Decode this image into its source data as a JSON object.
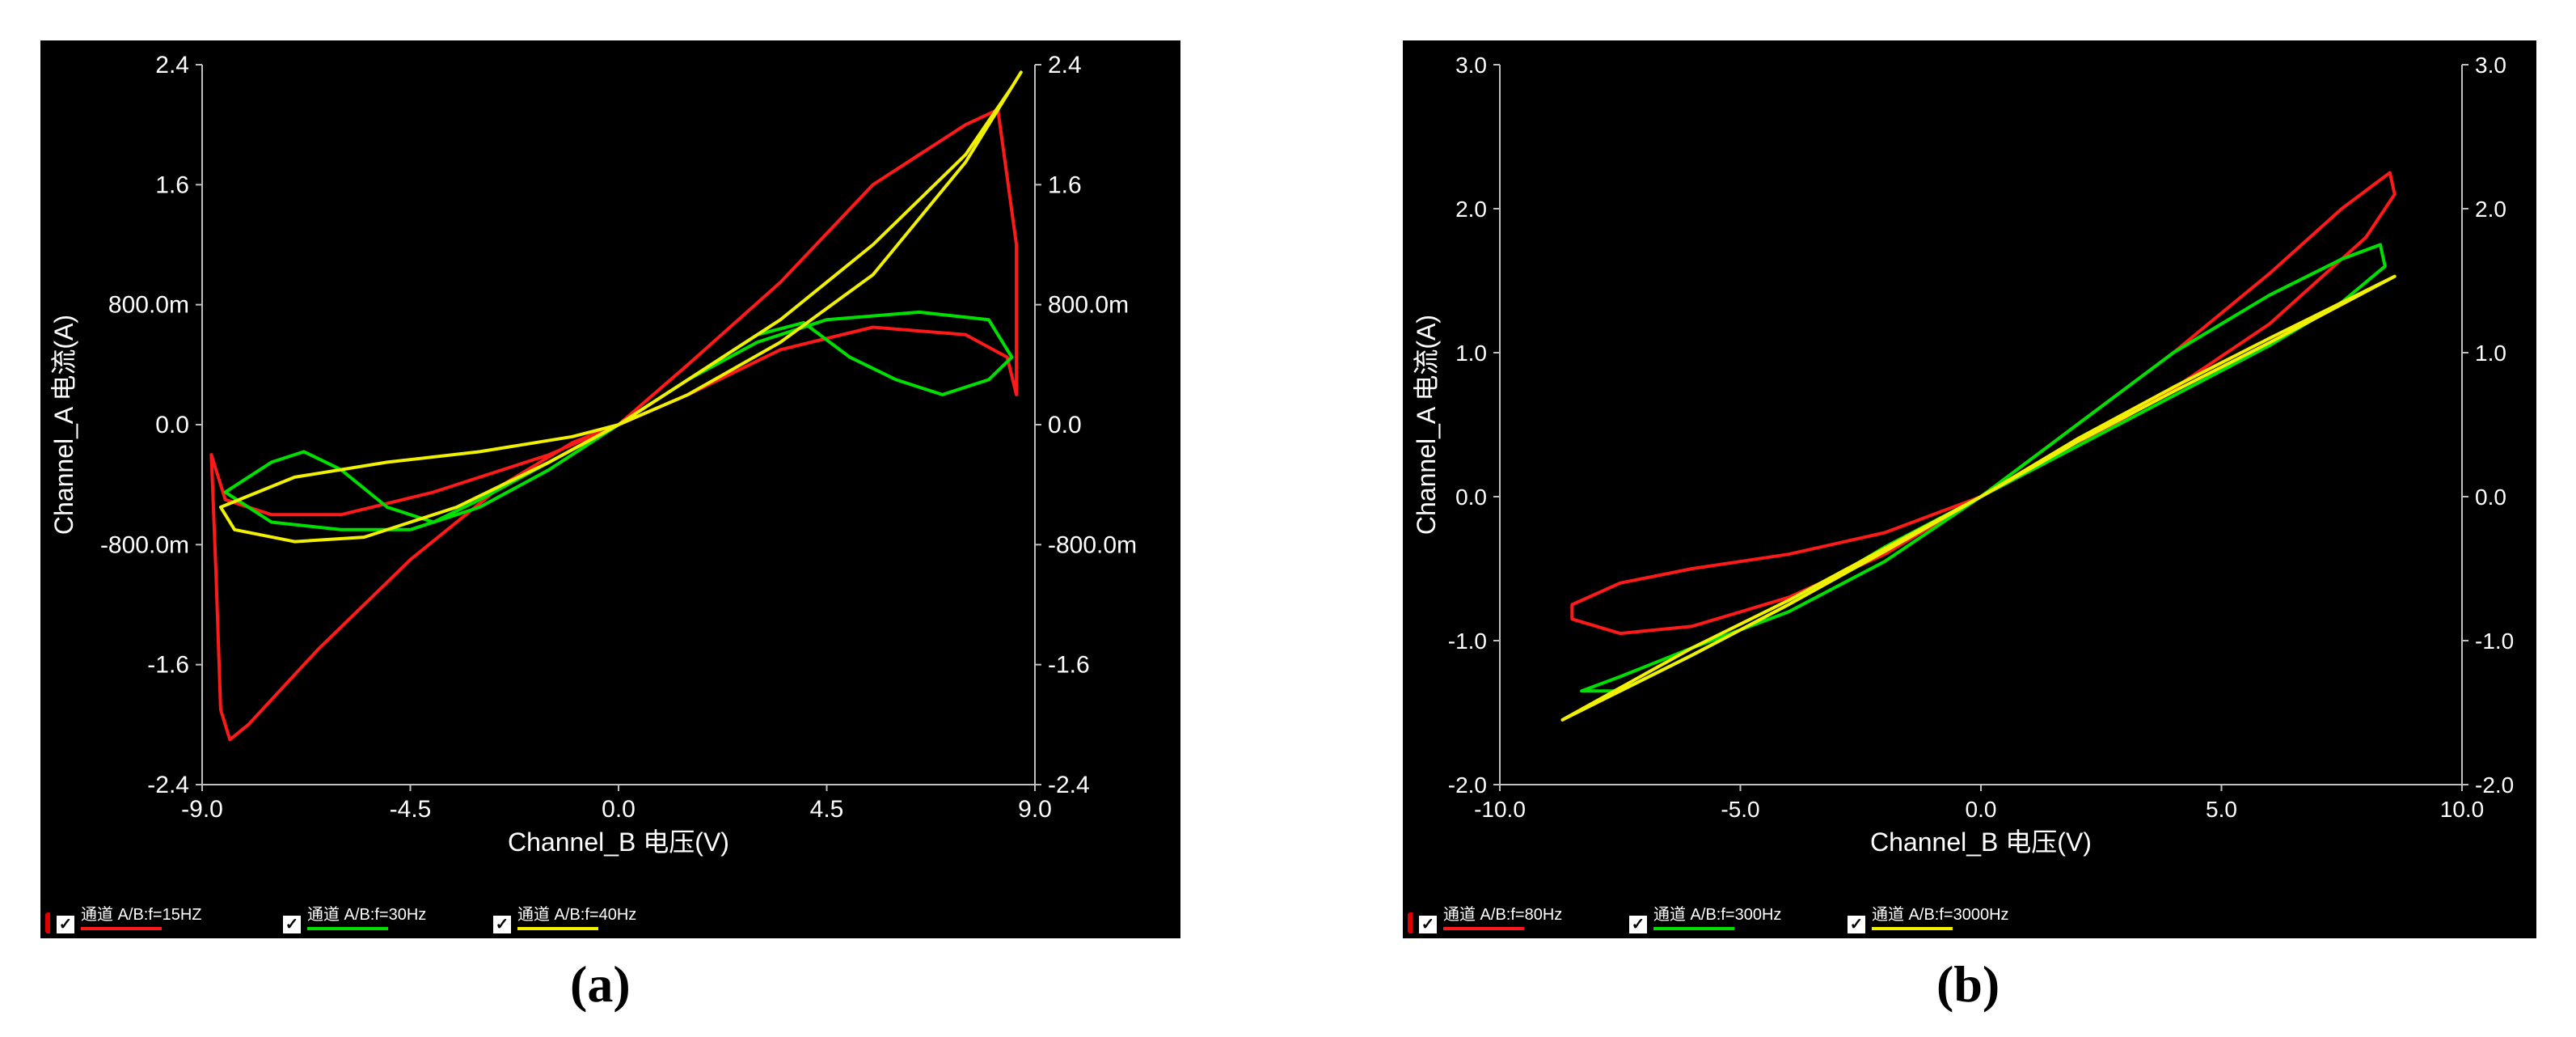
{
  "figures": [
    {
      "id": "a",
      "caption": "(a)",
      "legend": [
        {
          "label": "通道 A/B:f=15HZ",
          "color": "#ff1a1a"
        },
        {
          "label": "通道 A/B:f=30Hz",
          "color": "#00e000"
        },
        {
          "label": "通道 A/B:f=40Hz",
          "color": "#f0f000"
        }
      ]
    },
    {
      "id": "b",
      "caption": "(b)",
      "legend": [
        {
          "label": "通道 A/B:f=80Hz",
          "color": "#ff1a1a"
        },
        {
          "label": "通道 A/B:f=300Hz",
          "color": "#00e000"
        },
        {
          "label": "通道 A/B:f=3000Hz",
          "color": "#f0f000"
        }
      ]
    }
  ],
  "chart_data": [
    {
      "type": "line",
      "xlabel": "Channel_B 电压(V)",
      "ylabel": "Channel_A 电流(A)",
      "xlim": [
        -9.0,
        9.0
      ],
      "ylim": [
        -2.4,
        2.4
      ],
      "x_ticks": [
        -9.0,
        -4.5,
        0.0,
        4.5,
        9.0
      ],
      "x_tick_labels": [
        "-9.0",
        "-4.5",
        "0.0",
        "4.5",
        "9.0"
      ],
      "y_ticks": [
        2.4,
        1.6,
        0.8,
        0.0,
        -0.8,
        -1.6,
        -2.4
      ],
      "y_tick_labels": [
        "2.4",
        "1.6",
        "800.0m",
        "0.0",
        "-800.0m",
        "-1.6",
        "-2.4"
      ],
      "background": "#000000",
      "series": [
        {
          "name": "通道 A/B:f=15HZ",
          "color": "#ff1a1a",
          "x": [
            -8.8,
            -8.7,
            -8.6,
            -8.4,
            -8.0,
            -6.5,
            -4.5,
            -2.5,
            -1.0,
            0.0,
            1.5,
            3.5,
            5.5,
            7.5,
            8.2,
            8.6,
            8.6,
            8.4,
            7.5,
            5.5,
            3.5,
            1.5,
            0.0,
            -1.5,
            -4.0,
            -6.0,
            -7.5,
            -8.5,
            -8.8
          ],
          "y": [
            -0.2,
            -1.0,
            -1.9,
            -2.1,
            -2.0,
            -1.5,
            -0.9,
            -0.4,
            -0.12,
            0.0,
            0.4,
            0.95,
            1.6,
            2.0,
            2.1,
            1.2,
            0.2,
            0.45,
            0.6,
            0.65,
            0.5,
            0.2,
            0.0,
            -0.2,
            -0.45,
            -0.6,
            -0.6,
            -0.5,
            -0.2
          ]
        },
        {
          "name": "通道 A/B:f=30Hz",
          "color": "#00e000",
          "x": [
            -8.5,
            -7.5,
            -6.8,
            -6.0,
            -5.0,
            -4.0,
            -3.0,
            -1.5,
            0.0,
            1.5,
            3.0,
            4.0,
            5.0,
            6.0,
            7.0,
            8.0,
            8.5,
            8.0,
            6.5,
            4.5,
            3.0,
            1.5,
            0.0,
            -1.5,
            -3.0,
            -4.5,
            -6.0,
            -7.5,
            -8.5
          ],
          "y": [
            -0.45,
            -0.25,
            -0.18,
            -0.3,
            -0.55,
            -0.65,
            -0.5,
            -0.25,
            0.0,
            0.3,
            0.6,
            0.68,
            0.45,
            0.3,
            0.2,
            0.3,
            0.45,
            0.7,
            0.75,
            0.7,
            0.55,
            0.3,
            0.0,
            -0.3,
            -0.55,
            -0.7,
            -0.7,
            -0.65,
            -0.45
          ]
        },
        {
          "name": "通道 A/B:f=40Hz",
          "color": "#f0f000",
          "x": [
            -8.6,
            -7.0,
            -5.0,
            -3.0,
            -1.0,
            0.0,
            1.5,
            3.5,
            5.5,
            7.5,
            8.5,
            8.7,
            7.5,
            5.5,
            3.5,
            1.5,
            0.0,
            -1.5,
            -3.5,
            -5.5,
            -7.0,
            -8.3,
            -8.6
          ],
          "y": [
            -0.55,
            -0.35,
            -0.25,
            -0.18,
            -0.08,
            0.0,
            0.3,
            0.7,
            1.2,
            1.8,
            2.25,
            2.35,
            1.75,
            1.0,
            0.55,
            0.2,
            0.0,
            -0.25,
            -0.55,
            -0.75,
            -0.78,
            -0.7,
            -0.55
          ]
        }
      ]
    },
    {
      "type": "line",
      "xlabel": "Channel_B 电压(V)",
      "ylabel": "Channel_A 电流(A)",
      "xlim": [
        -10.0,
        10.0
      ],
      "ylim": [
        -2.0,
        3.0
      ],
      "x_ticks": [
        -10.0,
        -5.0,
        0.0,
        5.0,
        10.0
      ],
      "x_tick_labels": [
        "-10.0",
        "-5.0",
        "0.0",
        "5.0",
        "10.0"
      ],
      "y_ticks": [
        3.0,
        2.0,
        1.0,
        0.0,
        -1.0,
        -2.0
      ],
      "y_tick_labels": [
        "3.0",
        "2.0",
        "1.0",
        "0.0",
        "-1.0",
        "-2.0"
      ],
      "background": "#000000",
      "series": [
        {
          "name": "通道 A/B:f=80Hz",
          "color": "#ff1a1a",
          "x": [
            -8.5,
            -7.5,
            -6.0,
            -4.0,
            -2.0,
            0.0,
            2.0,
            4.0,
            6.0,
            7.5,
            8.5,
            8.6,
            8.0,
            6.0,
            4.0,
            2.0,
            0.0,
            -2.0,
            -4.0,
            -6.0,
            -7.5,
            -8.5,
            -8.5
          ],
          "y": [
            -0.85,
            -0.95,
            -0.9,
            -0.7,
            -0.4,
            0.0,
            0.5,
            1.0,
            1.55,
            2.0,
            2.25,
            2.1,
            1.8,
            1.2,
            0.75,
            0.35,
            0.0,
            -0.25,
            -0.4,
            -0.5,
            -0.6,
            -0.75,
            -0.85
          ]
        },
        {
          "name": "通道 A/B:f=300Hz",
          "color": "#00e000",
          "x": [
            -8.3,
            -7.5,
            -6.0,
            -4.0,
            -2.0,
            0.0,
            2.0,
            4.0,
            6.0,
            7.5,
            8.4,
            8.3,
            7.5,
            6.0,
            4.0,
            2.0,
            0.0,
            -2.0,
            -4.0,
            -6.0,
            -7.5,
            -8.3
          ],
          "y": [
            -1.35,
            -1.35,
            -1.1,
            -0.75,
            -0.35,
            0.0,
            0.35,
            0.7,
            1.05,
            1.35,
            1.6,
            1.75,
            1.65,
            1.4,
            1.0,
            0.5,
            0.0,
            -0.45,
            -0.8,
            -1.05,
            -1.25,
            -1.35
          ]
        },
        {
          "name": "通道 A/B:f=3000Hz",
          "color": "#f0f000",
          "x": [
            -8.7,
            -6.0,
            -4.0,
            -2.0,
            0.0,
            2.0,
            4.0,
            6.0,
            8.6,
            6.0,
            4.0,
            2.0,
            0.0,
            -2.0,
            -4.0,
            -6.0,
            -8.7
          ],
          "y": [
            -1.55,
            -1.1,
            -0.75,
            -0.38,
            0.0,
            0.38,
            0.73,
            1.07,
            1.53,
            1.1,
            0.76,
            0.4,
            0.0,
            -0.36,
            -0.72,
            -1.05,
            -1.55
          ]
        }
      ]
    }
  ]
}
